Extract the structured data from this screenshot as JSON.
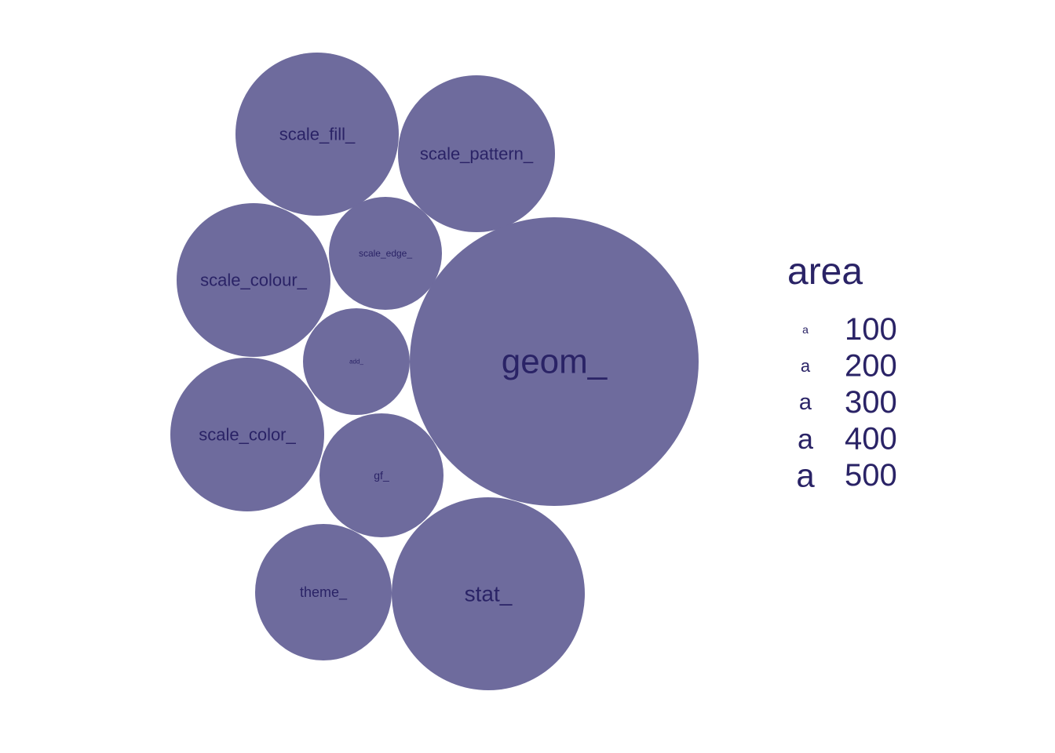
{
  "chart_data": {
    "type": "bubble",
    "title": "",
    "colors": {
      "fill": "#6e6b9d",
      "text": "#2a2366"
    },
    "bubbles": [
      {
        "label": "scale_fill_",
        "area": 330
      },
      {
        "label": "scale_pattern_",
        "area": 310
      },
      {
        "label": "scale_edge_",
        "area": 160
      },
      {
        "label": "scale_colour_",
        "area": 300
      },
      {
        "label": "add_",
        "area": 145
      },
      {
        "label": "geom_",
        "area": 1050
      },
      {
        "label": "scale_color_",
        "area": 300
      },
      {
        "label": "gf_",
        "area": 195
      },
      {
        "label": "theme_",
        "area": 235
      },
      {
        "label": "stat_",
        "area": 475
      }
    ],
    "legend": {
      "title": "area",
      "glyph": "a",
      "position": "right",
      "entries": [
        "100",
        "200",
        "300",
        "400",
        "500"
      ]
    }
  }
}
